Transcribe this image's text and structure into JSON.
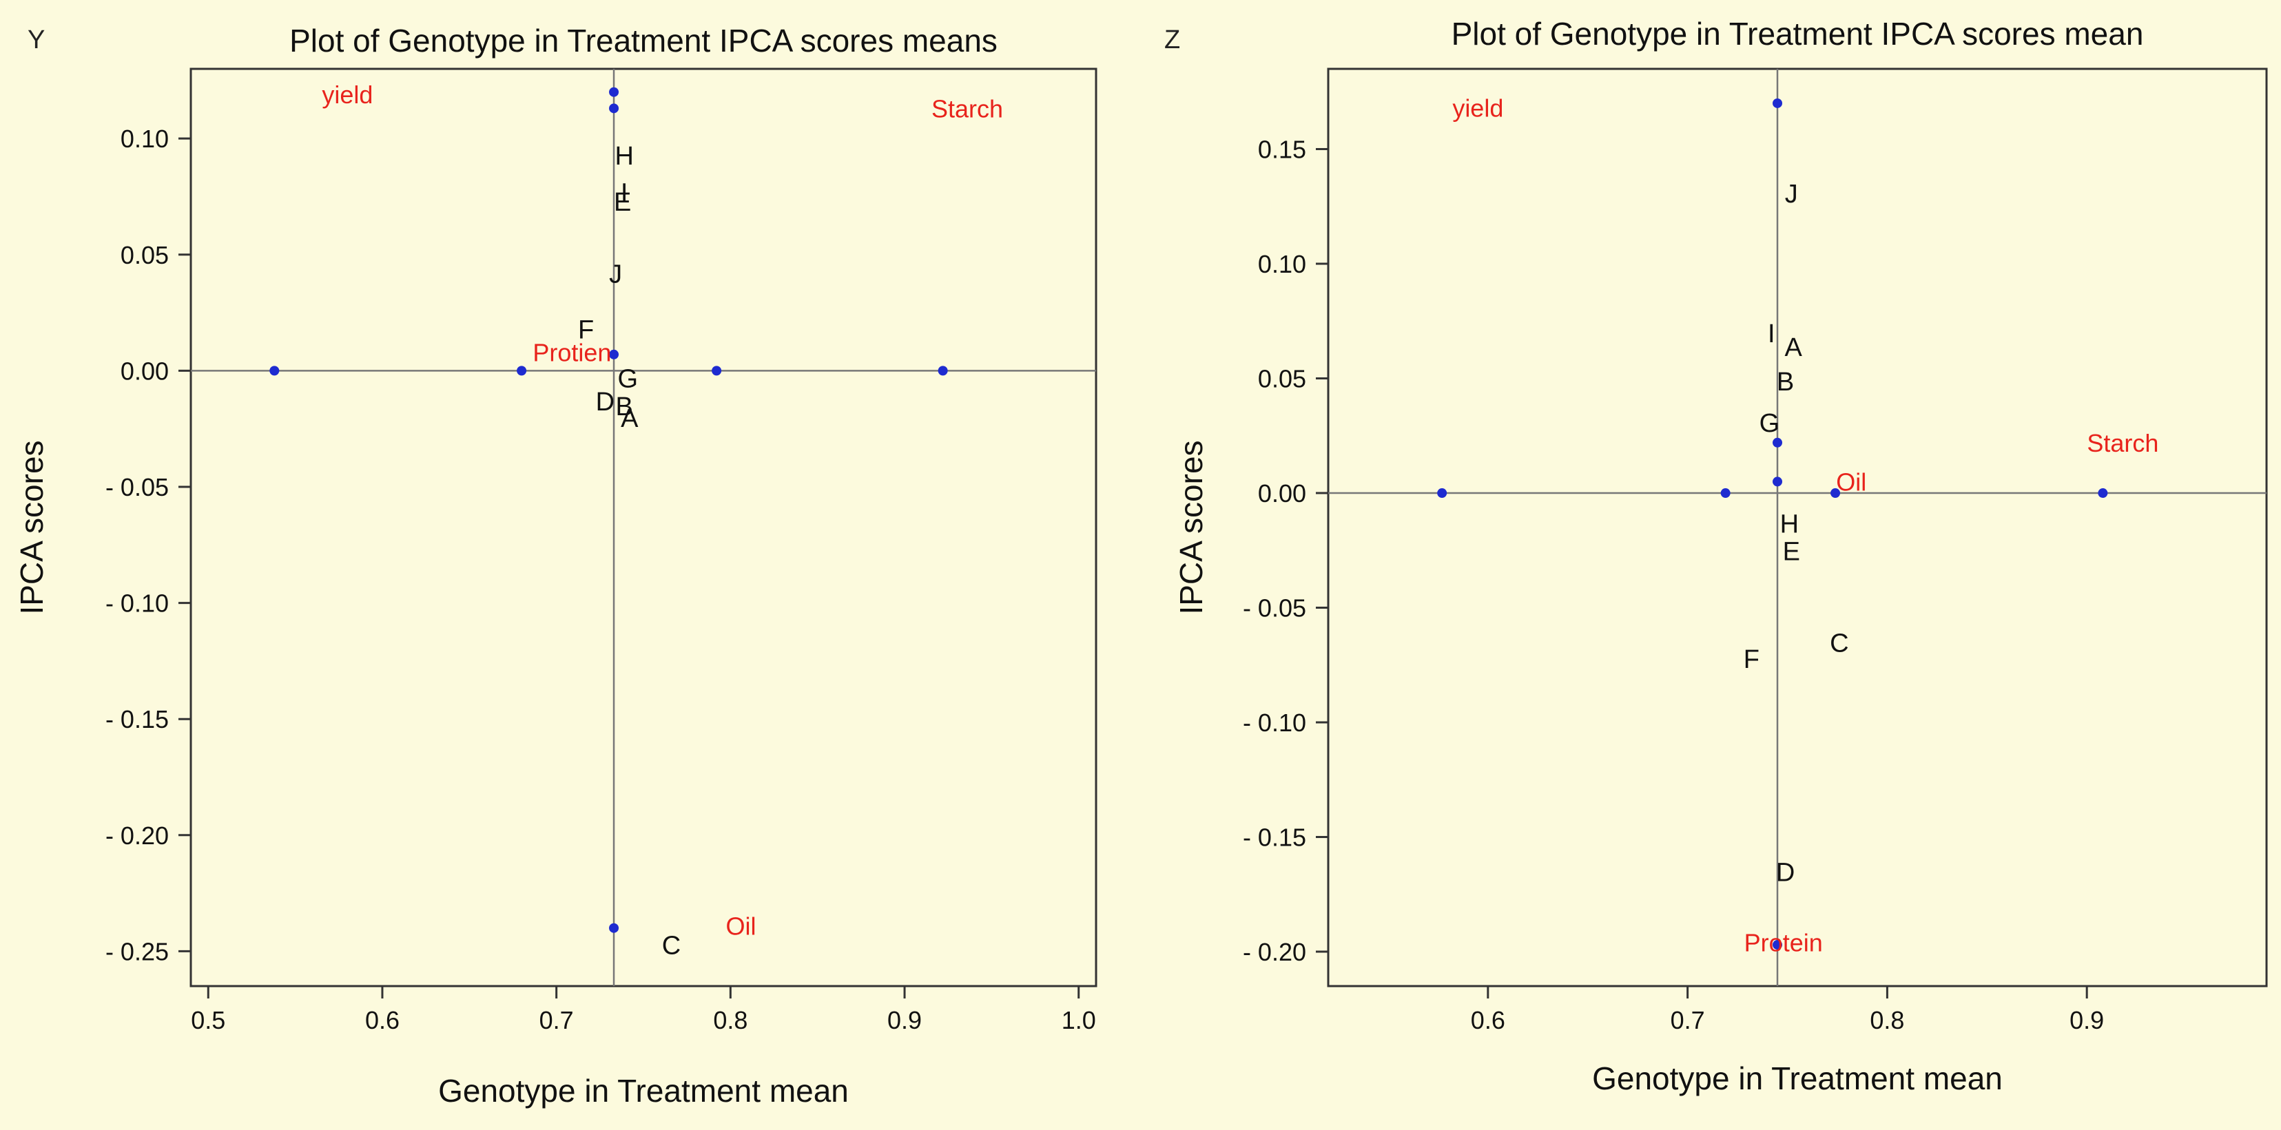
{
  "chart_data": [
    {
      "type": "scatter",
      "panel": "Y",
      "title": "Plot of Genotype in Treatment IPCA scores means",
      "xlabel": "Genotype in Treatment mean",
      "ylabel": "IPCA scores",
      "xlim": [
        0.49,
        1.01
      ],
      "ylim": [
        -0.265,
        0.13
      ],
      "xticks": [
        0.5,
        0.6,
        0.7,
        0.8,
        0.9,
        1.0
      ],
      "xtick_labels": [
        "0.5",
        "0.6",
        "0.7",
        "0.8",
        "0.9",
        "1.0"
      ],
      "yticks": [
        0.1,
        0.05,
        0.0,
        -0.05,
        -0.1,
        -0.15,
        -0.2,
        -0.25
      ],
      "ytick_labels": [
        "0.10",
        "0.05",
        "0.00",
        "- 0.05",
        "- 0.10",
        "- 0.15",
        "- 0.20",
        "- 0.25"
      ],
      "reference_lines": {
        "x": 0.733,
        "y": 0.0
      },
      "environment_points": [
        {
          "x": 0.538,
          "y": 0.0
        },
        {
          "x": 0.68,
          "y": 0.0
        },
        {
          "x": 0.792,
          "y": 0.0
        },
        {
          "x": 0.922,
          "y": 0.0
        },
        {
          "x": 0.733,
          "y": 0.12
        },
        {
          "x": 0.733,
          "y": 0.113
        },
        {
          "x": 0.733,
          "y": 0.007
        },
        {
          "x": 0.733,
          "y": -0.24
        }
      ],
      "genotype_labels": [
        {
          "label": "H",
          "x": 0.739,
          "y": 0.093
        },
        {
          "label": "I",
          "x": 0.739,
          "y": 0.077
        },
        {
          "label": "E",
          "x": 0.738,
          "y": 0.073
        },
        {
          "label": "J",
          "x": 0.734,
          "y": 0.042
        },
        {
          "label": "F",
          "x": 0.717,
          "y": 0.018
        },
        {
          "label": "G",
          "x": 0.741,
          "y": -0.003
        },
        {
          "label": "D",
          "x": 0.728,
          "y": -0.013
        },
        {
          "label": "B",
          "x": 0.739,
          "y": -0.015
        },
        {
          "label": "A",
          "x": 0.742,
          "y": -0.02
        },
        {
          "label": "C",
          "x": 0.766,
          "y": -0.247
        }
      ],
      "trait_labels": [
        {
          "label": "yield",
          "x": 0.58,
          "y": 0.119
        },
        {
          "label": "Starch",
          "x": 0.936,
          "y": 0.113
        },
        {
          "label": "Protien",
          "x": 0.709,
          "y": 0.008
        },
        {
          "label": "Oil",
          "x": 0.806,
          "y": -0.239
        }
      ]
    },
    {
      "type": "scatter",
      "panel": "Z",
      "title": "Plot of Genotype in Treatment IPCA scores mean",
      "xlabel": "Genotype in Treatment mean",
      "ylabel": "IPCA scores",
      "xlim": [
        0.52,
        0.99
      ],
      "ylim": [
        -0.215,
        0.185
      ],
      "xticks": [
        0.6,
        0.7,
        0.8,
        0.9
      ],
      "xtick_labels": [
        "0.6",
        "0.7",
        "0.8",
        "0.9"
      ],
      "yticks": [
        0.15,
        0.1,
        0.05,
        0.0,
        -0.05,
        -0.1,
        -0.15,
        -0.2
      ],
      "ytick_labels": [
        "0.15",
        "0.10",
        "0.05",
        "0.00",
        "- 0.05",
        "- 0.10",
        "- 0.15",
        "- 0.20"
      ],
      "reference_lines": {
        "x": 0.745,
        "y": 0.0
      },
      "environment_points": [
        {
          "x": 0.577,
          "y": 0.0
        },
        {
          "x": 0.719,
          "y": 0.0
        },
        {
          "x": 0.774,
          "y": 0.0
        },
        {
          "x": 0.908,
          "y": 0.0
        },
        {
          "x": 0.745,
          "y": 0.17
        },
        {
          "x": 0.745,
          "y": 0.022
        },
        {
          "x": 0.745,
          "y": 0.005
        },
        {
          "x": 0.745,
          "y": -0.197
        }
      ],
      "genotype_labels": [
        {
          "label": "J",
          "x": 0.752,
          "y": 0.131
        },
        {
          "label": "I",
          "x": 0.742,
          "y": 0.07
        },
        {
          "label": "A",
          "x": 0.753,
          "y": 0.064
        },
        {
          "label": "B",
          "x": 0.749,
          "y": 0.049
        },
        {
          "label": "G",
          "x": 0.741,
          "y": 0.031
        },
        {
          "label": "H",
          "x": 0.751,
          "y": -0.013
        },
        {
          "label": "E",
          "x": 0.752,
          "y": -0.025
        },
        {
          "label": "C",
          "x": 0.776,
          "y": -0.065
        },
        {
          "label": "F",
          "x": 0.732,
          "y": -0.072
        },
        {
          "label": "D",
          "x": 0.749,
          "y": -0.165
        }
      ],
      "trait_labels": [
        {
          "label": "yield",
          "x": 0.595,
          "y": 0.168
        },
        {
          "label": "Starch",
          "x": 0.918,
          "y": 0.022
        },
        {
          "label": "Oil",
          "x": 0.782,
          "y": 0.005
        },
        {
          "label": "Protein",
          "x": 0.748,
          "y": -0.196
        }
      ]
    }
  ]
}
